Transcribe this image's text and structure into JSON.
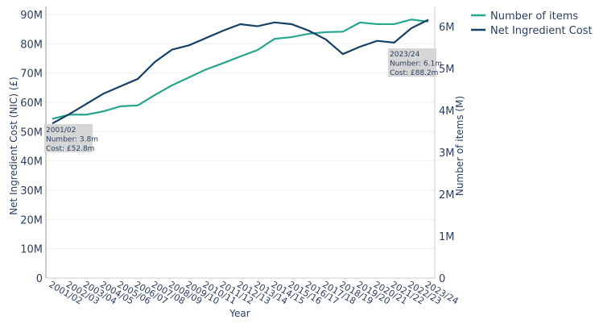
{
  "chart_data": {
    "type": "line",
    "xlabel": "Year",
    "ylabel_left": "Net Ingredient Cost (NIC) (£)",
    "ylabel_right": "Number of items (M)",
    "ylim_left": [
      0,
      90
    ],
    "ylim_right": [
      0,
      6.29
    ],
    "yticks_left": [
      "0",
      "10M",
      "20M",
      "30M",
      "40M",
      "50M",
      "60M",
      "70M",
      "80M",
      "90M"
    ],
    "yticks_right": [
      "0",
      "1M",
      "2M",
      "3M",
      "4M",
      "5M",
      "6M"
    ],
    "grid": true,
    "legend": "top-right",
    "categories": [
      "2001/02",
      "2002/03",
      "2003/04",
      "2004/05",
      "2005/06",
      "2006/07",
      "2007/08",
      "2008/09",
      "2009/10",
      "2010/11",
      "2011/12",
      "2012/13",
      "2013/14",
      "2014/15",
      "2015/16",
      "2016/17",
      "2017/18",
      "2018/19",
      "2019/20",
      "2020/21",
      "2021/22",
      "2022/23",
      "2023/24"
    ],
    "series": [
      {
        "name": "Number of items",
        "axis": "right",
        "unit": "M",
        "color": "#26a58e",
        "values": [
          3.8,
          3.9,
          3.9,
          3.98,
          4.1,
          4.12,
          4.37,
          4.6,
          4.79,
          4.98,
          5.13,
          5.29,
          5.44,
          5.71,
          5.75,
          5.83,
          5.87,
          5.88,
          6.1,
          6.06,
          6.06,
          6.17,
          6.12
        ]
      },
      {
        "name": "Net Ingredient Cost",
        "axis": "left",
        "unit": "M£",
        "color": "#163f66",
        "values": [
          52.8,
          56,
          59.5,
          63,
          65.5,
          68,
          73.8,
          78,
          79.5,
          82,
          84.5,
          86.7,
          86,
          87.3,
          86.7,
          84.5,
          81.5,
          76.5,
          79,
          81,
          80.4,
          85.3,
          88.2
        ]
      }
    ],
    "annotations": [
      {
        "lines": [
          "2001/02",
          "Number: 3.8m",
          "Cost: £52.8m"
        ]
      },
      {
        "lines": [
          "2023/24",
          "Number: 6.1m",
          "Cost: £88.2m"
        ]
      }
    ]
  }
}
